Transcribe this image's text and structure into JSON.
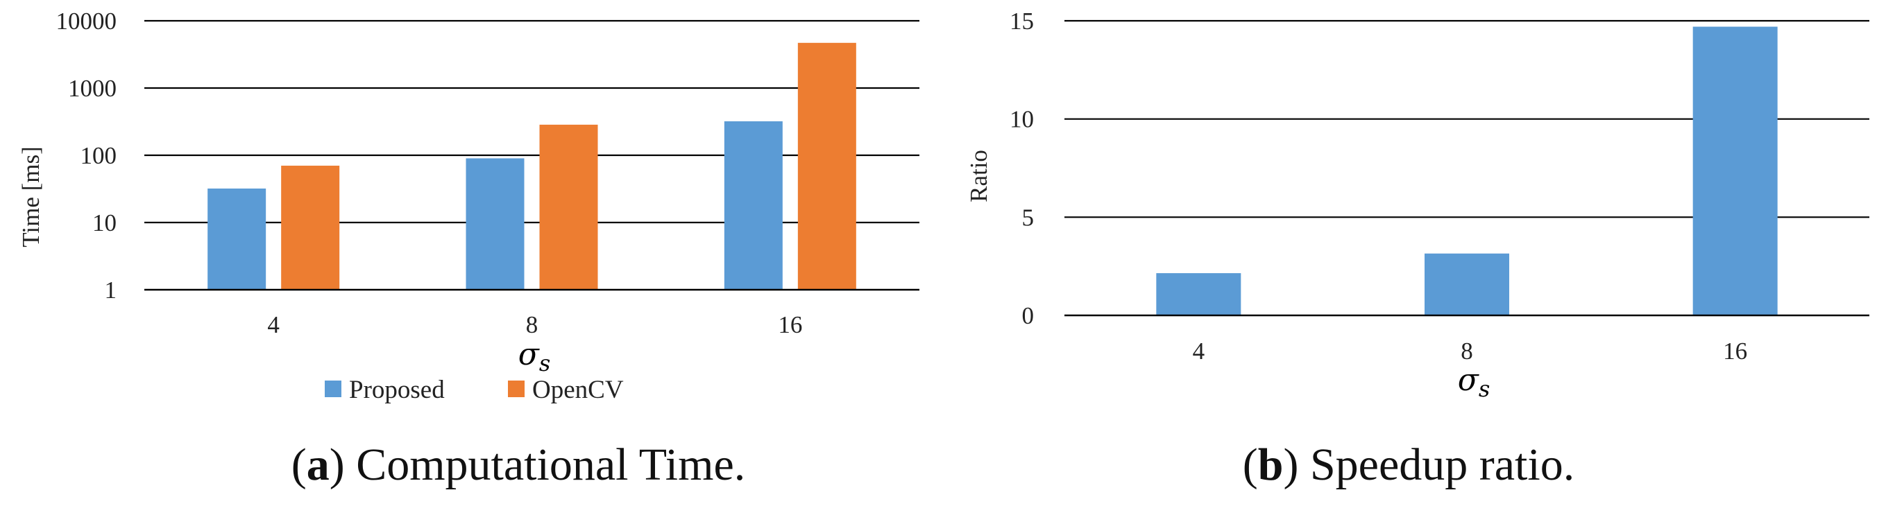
{
  "chart_data": [
    {
      "type": "bar",
      "caption_letter": "a",
      "caption_text": "Computational Time.",
      "ylabel": "Time [ms]",
      "xlabel_symbol": "σ",
      "xlabel_subscript": "s",
      "y_scale": "log",
      "ylim": [
        1,
        10000
      ],
      "yticks": [
        "1",
        "10",
        "100",
        "1000",
        "10000"
      ],
      "categories": [
        "4",
        "8",
        "16"
      ],
      "series": [
        {
          "name": "Proposed",
          "color": "#5b9bd5",
          "values": [
            32,
            90,
            320
          ]
        },
        {
          "name": "OpenCV",
          "color": "#ed7d31",
          "values": [
            70,
            285,
            4700
          ]
        }
      ],
      "legend": "bottom-center",
      "grid": true
    },
    {
      "type": "bar",
      "caption_letter": "b",
      "caption_text": "Speedup ratio.",
      "ylabel": "Ratio",
      "xlabel_symbol": "σ",
      "xlabel_subscript": "s",
      "y_scale": "linear",
      "ylim": [
        0,
        15
      ],
      "yticks": [
        "0",
        "5",
        "10",
        "15"
      ],
      "categories": [
        "4",
        "8",
        "16"
      ],
      "series": [
        {
          "color": "#5b9bd5",
          "values": [
            2.15,
            3.15,
            14.7
          ]
        }
      ],
      "grid": true
    }
  ]
}
